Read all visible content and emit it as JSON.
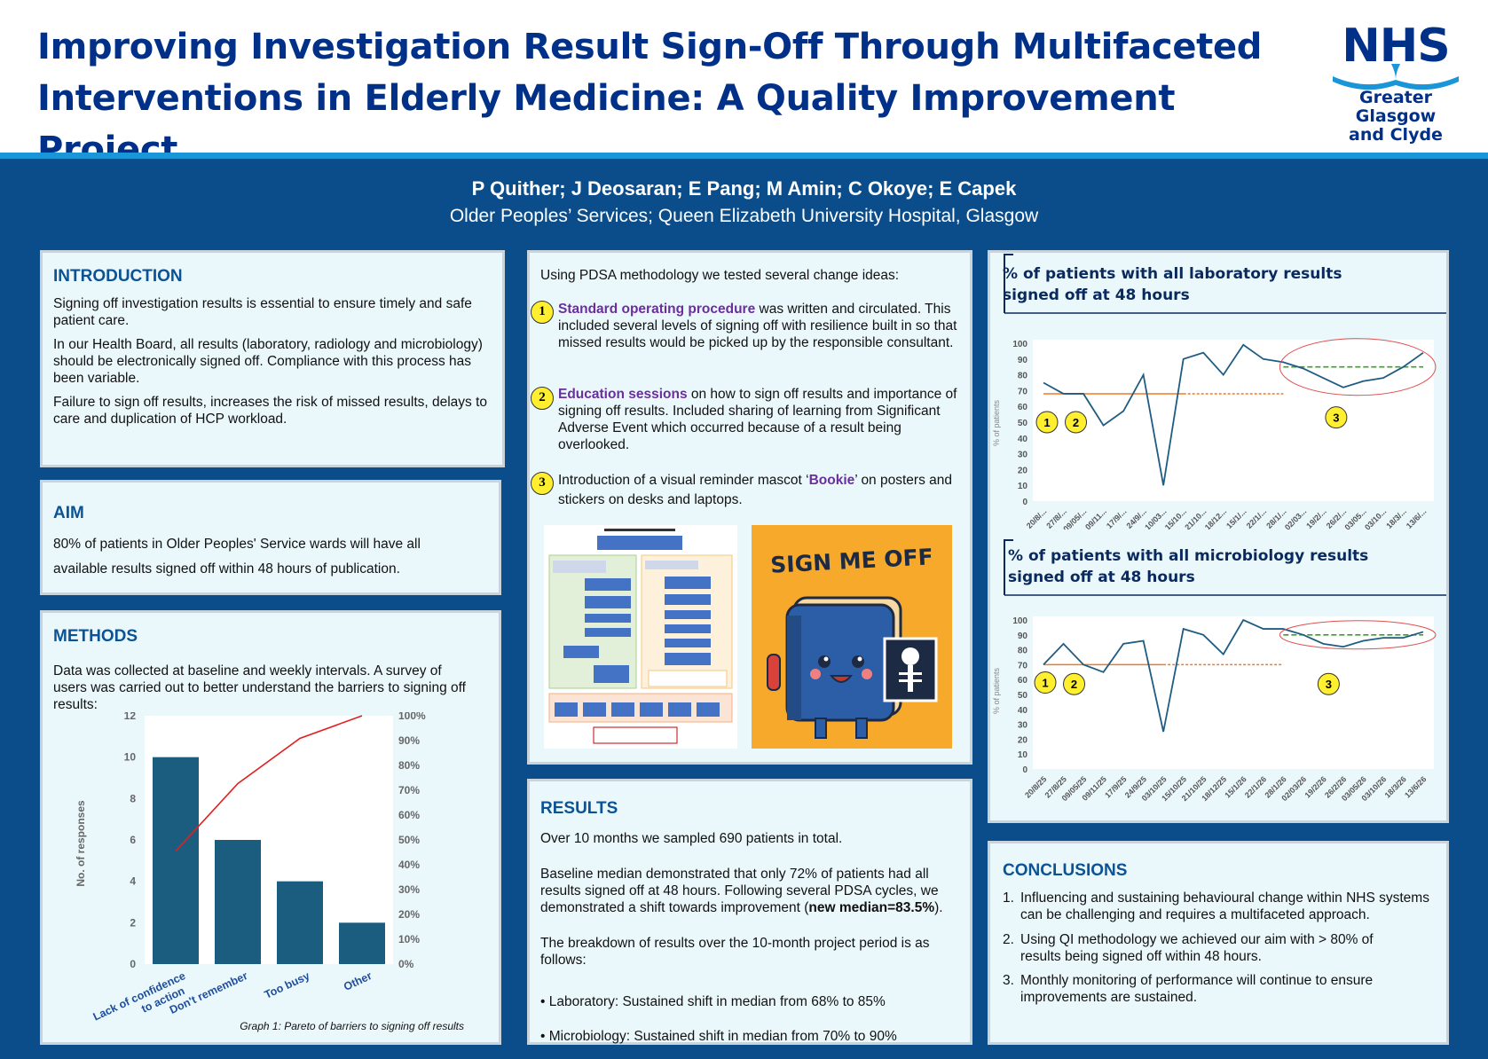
{
  "header": {
    "title": "Improving Investigation Result Sign-Off Through Multifaceted Interventions in Elderly Medicine: A Quality Improvement Project",
    "logo_text": "NHS",
    "logo_org_line1": "Greater Glasgow",
    "logo_org_line2": "and Clyde",
    "authors": "P Quither; J Deosaran; E Pang; M Amin; C Okoye; E Capek",
    "affiliation": "Older Peoples’ Services; Queen Elizabeth University Hospital, Glasgow"
  },
  "colors": {
    "nhs_blue": "#003087",
    "background": "#0b4d8a",
    "stripe": "#1a95d8",
    "panel": "#eaf8fc",
    "bar": "#1a5d7e",
    "median_baseline": "#f07828",
    "median_new": "#3aa02a"
  },
  "introduction": {
    "title": "INTRODUCTION",
    "p1": "Signing off investigation results is essential to ensure timely and safe patient care.",
    "p2": "In our Health Board, all results (laboratory, radiology and microbiology) should be electronically signed off. Compliance with this process has been variable.",
    "p3": "Failure to sign off results, increases the risk of missed results, delays to care and duplication of  HCP workload."
  },
  "aim": {
    "title": "AIM",
    "text": "80% of patients in Older Peoples' Service wards will have all available results signed off within 48 hours of publication."
  },
  "methods": {
    "title": "METHODS",
    "text": "Data was collected at baseline and weekly intervals. A survey of users was carried out to better understand the barriers to signing off results:"
  },
  "pdsa": {
    "intro": "Using PDSA methodology we tested several change ideas:",
    "items": [
      {
        "num": "1",
        "highlight": "Standard operating procedure",
        "rest": " was written and circulated. This included several levels of signing off with resilience built in so that missed results would be picked up by the responsible consultant."
      },
      {
        "num": "2",
        "highlight": "Education sessions",
        "rest": " on how to sign off results and importance of signing off results. Included sharing of learning from Significant Adverse Event which occurred because of a result being overlooked."
      },
      {
        "num": "3",
        "pre": "Introduction of a visual reminder mascot ‘",
        "highlight": "Bookie",
        "post": "’ on posters and stickers on desks and laptops."
      }
    ],
    "poster_text": "SIGN ME OFF"
  },
  "results": {
    "title": "RESULTS",
    "p1": "Over 10 months we sampled 690 patients in total.",
    "p2a": "Baseline median demonstrated that only 72% of patients had all results signed off at 48 hours. Following several PDSA cycles, we demonstrated a shift towards improvement (",
    "p2b": "new median=83.5%",
    "p2c": ").",
    "p3": "The breakdown of results over the 10-month project period is as follows:",
    "b1": "• Laboratory: Sustained shift in median from 68% to 85%",
    "b2": "• Microbiology:  Sustained shift in median from 70% to 90%"
  },
  "conclusions": {
    "title": "CONCLUSIONS",
    "items": [
      {
        "num": "1.",
        "text": "Influencing and sustaining behavioural change within NHS systems can be challenging and requires a multifaceted approach."
      },
      {
        "num": "2.",
        "text": "Using QI methodology we achieved  our aim with > 80% of  results being signed off within 48 hours."
      },
      {
        "num": "3.",
        "text": "Monthly monitoring of performance will continue to ensure improvements are sustained."
      }
    ]
  },
  "chart_data": [
    {
      "type": "bar",
      "title": "",
      "caption": "Graph 1: Pareto of barriers to signing off results",
      "categories": [
        "Lack of confidence to action",
        "Don't remember",
        "Too busy",
        "Other"
      ],
      "category_lines": [
        [
          "Lack of confidence",
          "to action"
        ],
        [
          "Don't remember"
        ],
        [
          "Too busy"
        ],
        [
          "Other"
        ]
      ],
      "values": [
        10,
        6,
        4,
        2
      ],
      "ylabel": "No. of responses",
      "ylim": [
        0,
        12
      ],
      "yticks": [
        "0",
        "2",
        "4",
        "6",
        "8",
        "10",
        "12"
      ],
      "y2ticks": [
        "0%",
        "10%",
        "20%",
        "30%",
        "40%",
        "50%",
        "60%",
        "70%",
        "80%",
        "90%",
        "100%"
      ],
      "cumulative_pct": [
        45.5,
        72.7,
        90.9,
        100
      ],
      "line_color": "#e02020"
    },
    {
      "type": "line",
      "title": "% of patients with all laboratory results signed off at 48 hours",
      "ylabel": "% of patients",
      "ylim": [
        0,
        100
      ],
      "yticks": [
        "0",
        "10",
        "20",
        "30",
        "40",
        "50",
        "60",
        "70",
        "80",
        "90",
        "100"
      ],
      "x_labels": [
        "20/8/...",
        "27/8/...",
        "09/05/...",
        "09/11...",
        "17/9/...",
        "24/9/...",
        "10/03...",
        "15/10...",
        "21/10...",
        "18/12...",
        "15/1/...",
        "22/1/...",
        "28/1/...",
        "02/03...",
        "19/2/...",
        "26/2/...",
        "03/05...",
        "03/10...",
        "18/3/...",
        "13/6/..."
      ],
      "values": [
        75,
        68,
        68,
        48,
        57,
        80,
        10,
        90,
        94,
        80,
        99,
        90,
        88,
        84,
        78,
        72,
        76,
        78,
        85,
        94
      ],
      "baseline_median": 68,
      "new_median": 85,
      "annotations": [
        "1",
        "2",
        "3"
      ]
    },
    {
      "type": "line",
      "title": "% of patients with all microbiology  results signed off at 48 hours",
      "ylabel": "% of patients",
      "ylim": [
        0,
        100
      ],
      "yticks": [
        "0",
        "10",
        "20",
        "30",
        "40",
        "50",
        "60",
        "70",
        "80",
        "90",
        "100"
      ],
      "x_labels": [
        "20/8/25",
        "27/8/25",
        "09/05/25",
        "09/11/25",
        "17/9/25",
        "24/9/25",
        "03/10/25",
        "15/10/25",
        "21/10/25",
        "18/12/25",
        "15/1/26",
        "22/1/26",
        "28/1/26",
        "02/03/26",
        "19/2/26",
        "26/2/26",
        "03/05/26",
        "03/10/26",
        "18/3/26",
        "13/6/26"
      ],
      "values": [
        70,
        84,
        70,
        65,
        84,
        86,
        25,
        94,
        90,
        77,
        100,
        94,
        94,
        90,
        84,
        82,
        86,
        88,
        88,
        92
      ],
      "baseline_median": 70,
      "new_median": 90,
      "annotations": [
        "1",
        "2",
        "3"
      ]
    }
  ]
}
